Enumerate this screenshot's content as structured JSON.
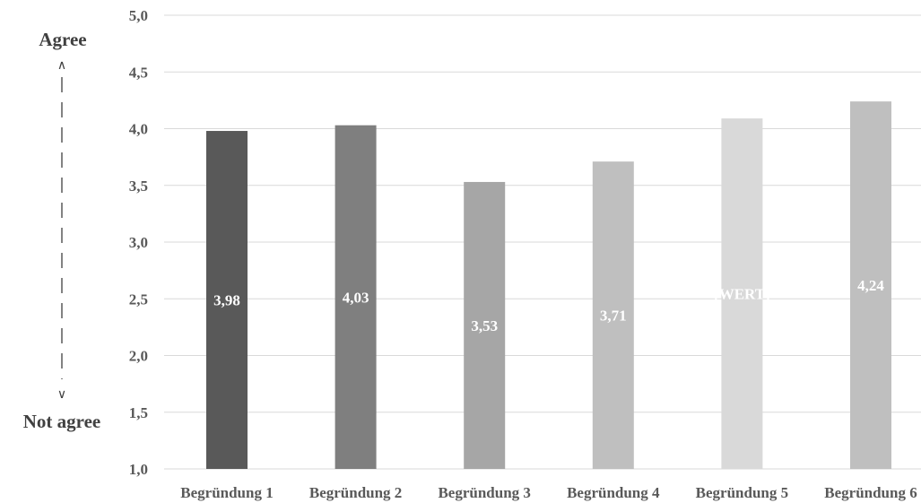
{
  "chart_data": {
    "type": "bar",
    "categories": [
      "Begründung 1",
      "Begründung 2",
      "Begründung 3",
      "Begründung 4",
      "Begründung 5",
      "Begründung 6"
    ],
    "values": [
      3.98,
      4.03,
      3.53,
      3.71,
      4.09,
      4.24
    ],
    "data_labels": [
      "3,98",
      "4,03",
      "3,53",
      "3,71",
      "[WERT]",
      "4,24"
    ],
    "bar_colors": [
      "#595959",
      "#7f7f7f",
      "#a6a6a6",
      "#bfbfbf",
      "#d9d9d9",
      "#bfbfbf"
    ],
    "ylim": [
      1.0,
      5.0
    ],
    "yticks": [
      "1,0",
      "1,5",
      "2,0",
      "2,5",
      "3,0",
      "3,5",
      "4,0",
      "4,5",
      "5,0"
    ],
    "ytick_values": [
      1.0,
      1.5,
      2.0,
      2.5,
      3.0,
      3.5,
      4.0,
      4.5,
      5.0
    ],
    "grid": true,
    "legend": "none",
    "scale_top_label": "Agree",
    "scale_bottom_label": "Not agree",
    "colors": {
      "gridline": "#d9d9d9",
      "axis_text": "#595959",
      "data_label": "#ffffff"
    }
  }
}
